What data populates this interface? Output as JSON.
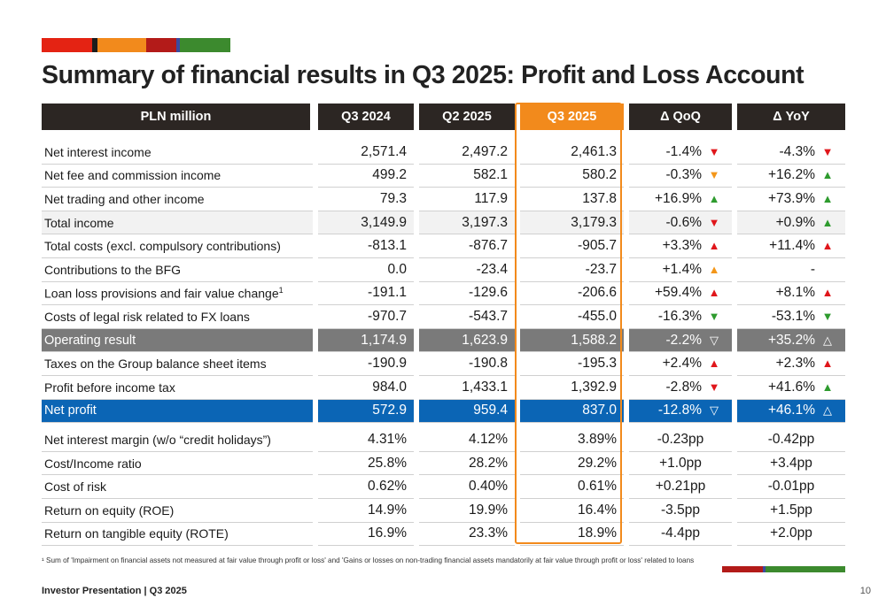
{
  "brand_bar": [
    {
      "name": "red",
      "color": "#e42313",
      "weight": 57
    },
    {
      "name": "black",
      "color": "#1c1c1c",
      "weight": 6
    },
    {
      "name": "orange",
      "color": "#f28a1c",
      "weight": 55
    },
    {
      "name": "darkred",
      "color": "#b31b19",
      "weight": 34
    },
    {
      "name": "blue",
      "color": "#3b4aa0",
      "weight": 4
    },
    {
      "name": "green",
      "color": "#3c8a2e",
      "weight": 57
    }
  ],
  "title": "Summary of financial results in Q3 2025: Profit and Loss Account",
  "table": {
    "headers": {
      "label": "PLN million",
      "q3_2024": "Q3 2024",
      "q2_2025": "Q2 2025",
      "q3_2025": "Q3 2025",
      "qoq": "Δ QoQ",
      "yoy": "Δ YoY"
    },
    "rows": [
      {
        "label": "Net interest income",
        "sup": "",
        "q3_2024": "2,571.4",
        "q2_2025": "2,497.2",
        "q3_2025": "2,461.3",
        "qoq": "-1.4%",
        "qoq_dir": "down",
        "yoy": "-4.3%",
        "yoy_dir": "down",
        "style": ""
      },
      {
        "label": "Net fee and commission income",
        "sup": "",
        "q3_2024": "499.2",
        "q2_2025": "582.1",
        "q3_2025": "580.2",
        "qoq": "-0.3%",
        "qoq_dir": "down-or",
        "yoy": "+16.2%",
        "yoy_dir": "up",
        "style": ""
      },
      {
        "label": "Net trading and other income",
        "sup": "",
        "q3_2024": "79.3",
        "q2_2025": "117.9",
        "q3_2025": "137.8",
        "qoq": "+16.9%",
        "qoq_dir": "up",
        "yoy": "+73.9%",
        "yoy_dir": "up",
        "style": ""
      },
      {
        "label": "Total income",
        "sup": "",
        "q3_2024": "3,149.9",
        "q2_2025": "3,197.3",
        "q3_2025": "3,179.3",
        "qoq": "-0.6%",
        "qoq_dir": "down",
        "yoy": "+0.9%",
        "yoy_dir": "up",
        "style": "alt"
      },
      {
        "label": "Total costs (excl. compulsory contributions)",
        "sup": "",
        "q3_2024": "-813.1",
        "q2_2025": "-876.7",
        "q3_2025": "-905.7",
        "qoq": "+3.3%",
        "qoq_dir": "upred",
        "yoy": "+11.4%",
        "yoy_dir": "upred",
        "style": ""
      },
      {
        "label": "Contributions to the BFG",
        "sup": "",
        "q3_2024": "0.0",
        "q2_2025": "-23.4",
        "q3_2025": "-23.7",
        "qoq": "+1.4%",
        "qoq_dir": "up-or",
        "yoy": "-",
        "yoy_dir": "none",
        "style": ""
      },
      {
        "label": "Loan loss provisions and fair value change",
        "sup": "1",
        "q3_2024": "-191.1",
        "q2_2025": "-129.6",
        "q3_2025": "-206.6",
        "qoq": "+59.4%",
        "qoq_dir": "upred",
        "yoy": "+8.1%",
        "yoy_dir": "upred",
        "style": ""
      },
      {
        "label": "Costs of legal risk related to FX loans",
        "sup": "",
        "q3_2024": "-970.7",
        "q2_2025": "-543.7",
        "q3_2025": "-455.0",
        "qoq": "-16.3%",
        "qoq_dir": "downgreen",
        "yoy": "-53.1%",
        "yoy_dir": "downgreen",
        "style": ""
      },
      {
        "label": "Operating result",
        "sup": "",
        "q3_2024": "1,174.9",
        "q2_2025": "1,623.9",
        "q3_2025": "1,588.2",
        "qoq": "-2.2%",
        "qoq_dir": "down-hollow",
        "yoy": "+35.2%",
        "yoy_dir": "up-hollow",
        "style": "op"
      },
      {
        "label": "Taxes on the Group balance sheet items",
        "sup": "",
        "q3_2024": "-190.9",
        "q2_2025": "-190.8",
        "q3_2025": "-195.3",
        "qoq": "+2.4%",
        "qoq_dir": "upred",
        "yoy": "+2.3%",
        "yoy_dir": "upred",
        "style": ""
      },
      {
        "label": "Profit before income tax",
        "sup": "",
        "q3_2024": "984.0",
        "q2_2025": "1,433.1",
        "q3_2025": "1,392.9",
        "qoq": "-2.8%",
        "qoq_dir": "down",
        "yoy": "+41.6%",
        "yoy_dir": "up",
        "style": ""
      },
      {
        "label": "Net profit",
        "sup": "",
        "q3_2024": "572.9",
        "q2_2025": "959.4",
        "q3_2025": "837.0",
        "qoq": "-12.8%",
        "qoq_dir": "down-hollow",
        "yoy": "+46.1%",
        "yoy_dir": "up-hollow",
        "style": "np"
      }
    ],
    "ratios": [
      {
        "label": "Net interest margin (w/o “credit holidays”)",
        "q3_2024": "4.31%",
        "q2_2025": "4.12%",
        "q3_2025": "3.89%",
        "qoq": "-0.23pp",
        "yoy": "-0.42pp"
      },
      {
        "label": "Cost/Income ratio",
        "q3_2024": "25.8%",
        "q2_2025": "28.2%",
        "q3_2025": "29.2%",
        "qoq": "+1.0pp",
        "yoy": "+3.4pp"
      },
      {
        "label": "Cost of risk",
        "q3_2024": "0.62%",
        "q2_2025": "0.40%",
        "q3_2025": "0.61%",
        "qoq": "+0.21pp",
        "yoy": "-0.01pp"
      },
      {
        "label": "Return on equity (ROE)",
        "q3_2024": "14.9%",
        "q2_2025": "19.9%",
        "q3_2025": "16.4%",
        "qoq": "-3.5pp",
        "yoy": "+1.5pp"
      },
      {
        "label": "Return on tangible equity (ROTE)",
        "q3_2024": "16.9%",
        "q2_2025": "23.3%",
        "q3_2025": "18.9%",
        "qoq": "-4.4pp",
        "yoy": "+2.0pp"
      }
    ]
  },
  "footnote": "¹ Sum of 'Impairment on financial assets not measured at fair value through profit or loss' and 'Gains or losses on non-trading financial assets mandatorily at fair value through profit or loss' related to loans",
  "bottom_bar": [
    {
      "name": "darkred",
      "color": "#b31b19",
      "weight": 46
    },
    {
      "name": "blue",
      "color": "#3b4aa0",
      "weight": 3
    },
    {
      "name": "green",
      "color": "#3c8a2e",
      "weight": 90
    }
  ],
  "footer": "Investor Presentation  |  Q3 2025",
  "page_number": "10"
}
